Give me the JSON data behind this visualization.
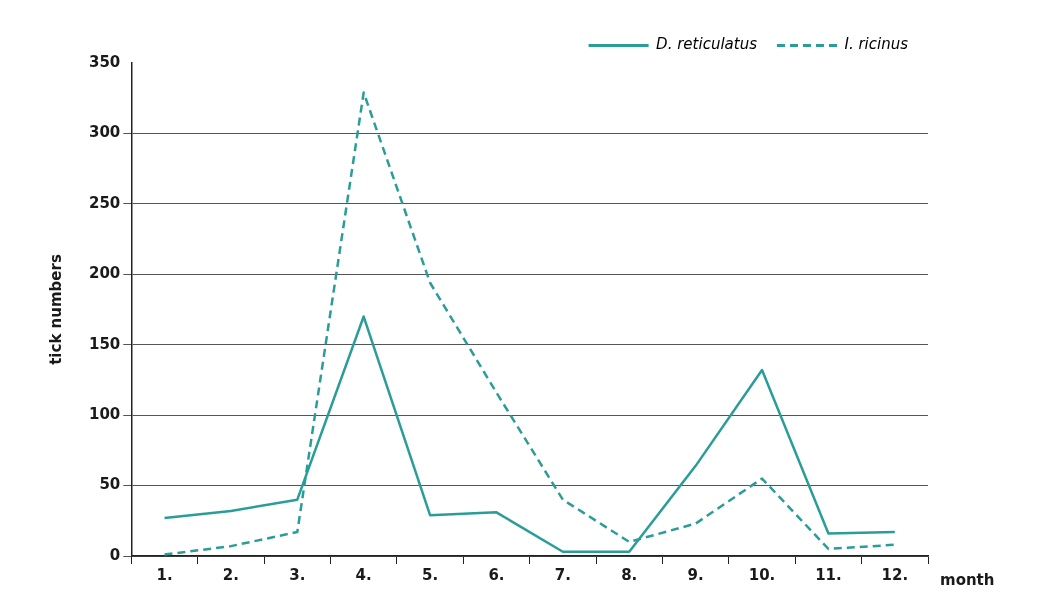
{
  "chart_data": {
    "type": "line",
    "xlabel": "month",
    "ylabel": "tick numbers",
    "categories": [
      "1.",
      "2.",
      "3.",
      "4.",
      "5.",
      "6.",
      "7.",
      "8.",
      "9.",
      "10.",
      "11.",
      "12."
    ],
    "series": [
      {
        "name": "D. reticulatus",
        "color": "#2a9d99",
        "line_style": "solid",
        "values": [
          27,
          32,
          40,
          170,
          29,
          31,
          3,
          3,
          64,
          132,
          16,
          17
        ]
      },
      {
        "name": "I. ricinus",
        "color": "#2a9d99",
        "line_style": "dashed",
        "values": [
          1,
          7,
          17,
          329,
          194,
          116,
          40,
          10,
          23,
          55,
          5,
          8
        ]
      }
    ],
    "ylim": [
      0,
      350
    ],
    "yticks": [
      0,
      50,
      100,
      150,
      200,
      250,
      300,
      350
    ],
    "grid": "y",
    "legend": "top right",
    "marker": "none"
  }
}
